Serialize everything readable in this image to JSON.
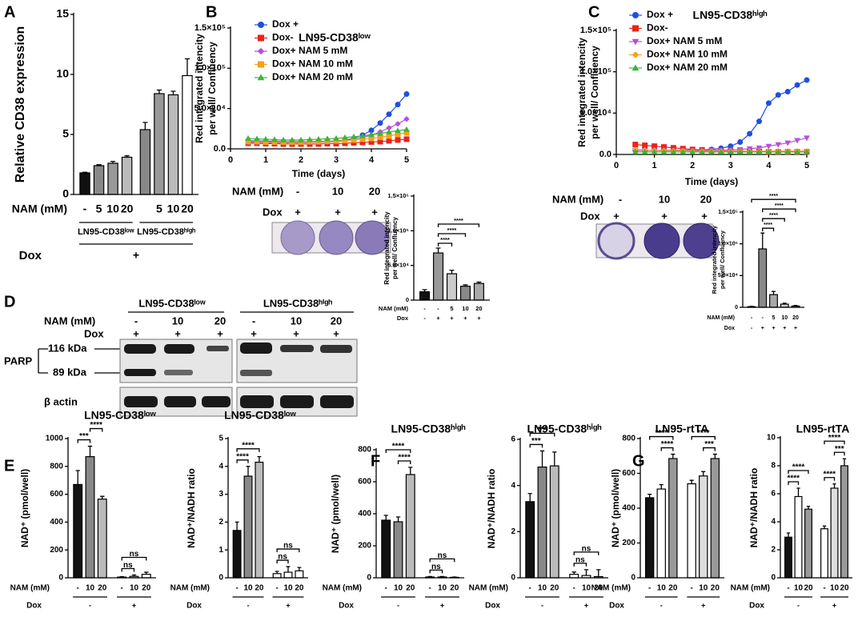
{
  "panels": [
    "A",
    "B",
    "C",
    "D",
    "E",
    "F",
    "G"
  ],
  "plate_B": {
    "nam_label": "NAM (mM)",
    "nam": [
      "-",
      "10",
      "20"
    ],
    "dox_label": "Dox",
    "dox": [
      "+",
      "+",
      "+"
    ]
  },
  "plate_C": {
    "nam_label": "NAM (mM)",
    "nam": [
      "-",
      "10",
      "20"
    ],
    "dox_label": "Dox",
    "dox": [
      "+",
      "+",
      "+"
    ]
  },
  "blot_D": {
    "nam_label": "NAM (mM)",
    "dox_label": "Dox",
    "groups": [
      {
        "title": "LN95-CD38ˡᵒʷ",
        "nam": [
          "-",
          "10",
          "20"
        ],
        "dox": [
          "+",
          "+",
          "+"
        ]
      },
      {
        "title": "LN95-CD38ʰⁱᵍʰ",
        "nam": [
          "-",
          "10",
          "20"
        ],
        "dox": [
          "+",
          "+",
          "+"
        ]
      }
    ],
    "protein": "PARP",
    "bands": [
      "116 kDa",
      "89 kDa"
    ],
    "loading": "β actin"
  },
  "chart_data": [
    {
      "type": "bar",
      "ylabel": "Relative CD38 expression",
      "ylim": [
        0,
        15
      ],
      "yticks": [
        0,
        5,
        10,
        15
      ],
      "categories": [
        "-",
        "5",
        "10",
        "20",
        null,
        "5",
        "10",
        "20"
      ],
      "values": [
        1.8,
        2.4,
        2.6,
        3.1,
        5.4,
        8.4,
        8.3,
        9.9
      ],
      "errors": [
        0.05,
        0.08,
        0.15,
        0.12,
        0.6,
        0.3,
        0.3,
        1.4
      ],
      "colors": [
        "#111111",
        "#888888",
        "#999999",
        "#bbbbbb",
        "#888888",
        "#999999",
        "#bbbbbb",
        "#ffffff"
      ],
      "row_labels": [
        "NAM (mM)",
        "Dox"
      ],
      "group_labels": [
        "LN95-CD38ˡᵒʷ",
        "LN95-CD38ʰⁱᵍʰ"
      ],
      "outer_label": "+"
    },
    {
      "type": "line",
      "title": "LN95-CD38ˡᵒʷ",
      "xlabel": "Time (days)",
      "ylabel": [
        "Red integrated intencity",
        "per well/ Confluency"
      ],
      "xlim": [
        0,
        5
      ],
      "xticks": [
        0,
        1,
        2,
        3,
        4,
        5
      ],
      "ylim": [
        0,
        150000
      ],
      "yticks": [
        {
          "value": 0,
          "label": "0.0"
        },
        {
          "value": 50000,
          "label": "5.0×10⁴"
        },
        {
          "value": 100000,
          "label": "1.0×10⁵"
        },
        {
          "value": 150000,
          "label": "1.5×10⁵"
        }
      ],
      "x": [
        0.5,
        0.75,
        1,
        1.25,
        1.5,
        1.75,
        2,
        2.25,
        2.5,
        2.75,
        3,
        3.25,
        3.5,
        3.75,
        4,
        4.25,
        4.5,
        4.75,
        5
      ],
      "series": [
        {
          "name": "Dox +",
          "color": "#1f4fe0",
          "marker": "circle",
          "values": [
            10000,
            10000,
            9500,
            9500,
            9000,
            9000,
            9000,
            9000,
            9500,
            9500,
            10000,
            11000,
            13000,
            17000,
            23000,
            32000,
            43000,
            55000,
            68000
          ]
        },
        {
          "name": "Dox-",
          "color": "#e8231a",
          "marker": "square",
          "values": [
            7000,
            7000,
            6500,
            6500,
            6000,
            6000,
            6000,
            6000,
            6000,
            6500,
            6500,
            7000,
            7500,
            8000,
            8500,
            9000,
            10000,
            11000,
            12000
          ]
        },
        {
          "name": "Dox+ NAM 5 mM",
          "color": "#b84fe0",
          "marker": "diamond",
          "values": [
            8000,
            8000,
            7500,
            7500,
            7500,
            7500,
            7500,
            8000,
            8000,
            8500,
            9000,
            10000,
            12000,
            14000,
            17000,
            21000,
            26000,
            31000,
            37000
          ]
        },
        {
          "name": "Dox+ NAM 10 mM",
          "color": "#f5a11a",
          "marker": "square",
          "values": [
            9000,
            9000,
            8500,
            8500,
            8500,
            8500,
            8500,
            9000,
            9000,
            9500,
            10000,
            10500,
            11000,
            12000,
            13000,
            14500,
            16000,
            18000,
            20000
          ]
        },
        {
          "name": "Dox+ NAM 20 mM",
          "color": "#3cb43c",
          "marker": "triangle",
          "values": [
            13000,
            12500,
            12000,
            11500,
            11000,
            11000,
            11000,
            11500,
            12000,
            12500,
            13000,
            14000,
            15000,
            16000,
            17500,
            19000,
            21000,
            22500,
            24000
          ]
        }
      ]
    },
    {
      "type": "bar",
      "ylabel": [
        "Red integrated intencity",
        "per well/ Confluency"
      ],
      "ylim": [
        0,
        150000
      ],
      "yticks": [
        0,
        {
          "value": 50000,
          "label": "5.0×10⁴"
        },
        {
          "value": 100000,
          "label": "1.0×10⁵"
        },
        {
          "value": 150000,
          "label": "1.5×10⁵"
        }
      ],
      "categories": [
        "-",
        "-",
        "5",
        "10",
        "20"
      ],
      "dox": [
        "-",
        "+",
        "+",
        "+",
        "+"
      ],
      "row_labels": [
        "NAM (mM)",
        "Dox"
      ],
      "values": [
        12000,
        68000,
        38000,
        20000,
        24000
      ],
      "errors": [
        3000,
        7000,
        5000,
        2000,
        2000
      ],
      "colors": [
        "#111111",
        "#999999",
        "#cccccc",
        "#888888",
        "#aaaaaa"
      ],
      "brackets": [
        {
          "bars": [
            1,
            2
          ],
          "label": "****"
        },
        {
          "bars": [
            1,
            3
          ],
          "label": "****"
        },
        {
          "bars": [
            1,
            4
          ],
          "label": "****"
        }
      ]
    },
    {
      "type": "line",
      "title": "LN95-CD38ʰⁱᵍʰ",
      "xlabel": "Time (days)",
      "ylabel": [
        "Red integrated intencity",
        "per well/ Confluency"
      ],
      "xlim": [
        0,
        5
      ],
      "xticks": [
        0,
        1,
        2,
        3,
        4,
        5
      ],
      "ylim": [
        0,
        150000
      ],
      "yticks": [
        {
          "value": 0,
          "label": "0.0"
        },
        {
          "value": 50000,
          "label": "5.0×10⁴"
        },
        {
          "value": 100000,
          "label": "1.0×10⁵"
        },
        {
          "value": 150000,
          "label": "1.5×10⁵"
        }
      ],
      "x": [
        0.5,
        0.75,
        1,
        1.25,
        1.5,
        1.75,
        2,
        2.25,
        2.5,
        2.75,
        3,
        3.25,
        3.5,
        3.75,
        4,
        4.25,
        4.5,
        4.75,
        5
      ],
      "series": [
        {
          "name": "Dox +",
          "color": "#1f4fe0",
          "marker": "circle",
          "values": [
            5000,
            5000,
            5000,
            5000,
            5000,
            5000,
            5000,
            5500,
            6000,
            7500,
            10000,
            15000,
            25000,
            40000,
            62000,
            72000,
            76000,
            84000,
            90000
          ]
        },
        {
          "name": "Dox-",
          "color": "#e8231a",
          "marker": "square",
          "values": [
            12000,
            11000,
            10000,
            9000,
            8000,
            7000,
            6000,
            5500,
            5000,
            4500,
            4000,
            4000,
            3500,
            3500,
            3000,
            3000,
            3000,
            3000,
            3000
          ]
        },
        {
          "name": "Dox+ NAM 5 mM",
          "color": "#b84fe0",
          "marker": "triangle-down",
          "values": [
            5000,
            5000,
            5000,
            4500,
            4500,
            4500,
            4500,
            4500,
            5000,
            5000,
            5500,
            6000,
            7000,
            8000,
            10000,
            12000,
            14000,
            17000,
            20000
          ]
        },
        {
          "name": "Dox+ NAM 10 mM",
          "color": "#f5a11a",
          "marker": "diamond",
          "values": [
            6000,
            5500,
            5000,
            5000,
            4500,
            4500,
            4000,
            4000,
            4000,
            4000,
            4000,
            4000,
            4000,
            4000,
            4000,
            4000,
            4000,
            4000,
            4000
          ]
        },
        {
          "name": "Dox+ NAM 20 mM",
          "color": "#3cb43c",
          "marker": "triangle",
          "values": [
            3000,
            3000,
            3000,
            3000,
            3000,
            3000,
            3000,
            3000,
            3000,
            3000,
            3000,
            3000,
            3000,
            3000,
            3000,
            3000,
            3000,
            3000,
            3000
          ]
        }
      ]
    },
    {
      "type": "bar",
      "ylabel": [
        "Red integrated intencity",
        "per well/ Confluency"
      ],
      "ylim": [
        0,
        150000
      ],
      "yticks": [
        0,
        {
          "value": 50000,
          "label": "5.0×10⁴"
        },
        {
          "value": 100000,
          "label": "1.0×10⁵"
        },
        {
          "value": 150000,
          "label": "1.5×10⁵"
        }
      ],
      "categories": [
        "-",
        "-",
        "5",
        "10",
        "20"
      ],
      "dox": [
        "-",
        "+",
        "+",
        "+",
        "+"
      ],
      "row_labels": [
        "NAM (mM)",
        "Dox"
      ],
      "values": [
        1000,
        92000,
        20000,
        5000,
        2000
      ],
      "errors": [
        500,
        25000,
        5000,
        1500,
        1000
      ],
      "colors": [
        "#111111",
        "#888888",
        "#aaaaaa",
        "#cccccc",
        "#999999"
      ],
      "brackets": [
        {
          "bars": [
            1,
            2
          ],
          "label": "****"
        },
        {
          "bars": [
            1,
            3
          ],
          "label": "****"
        },
        {
          "bars": [
            1,
            4
          ],
          "label": "****"
        },
        {
          "bars": [
            0,
            4
          ],
          "label": "****"
        }
      ]
    },
    {
      "type": "bar",
      "title": "LN95-CD38ˡᵒʷ",
      "ylabel": "NAD⁺ (pmol/well)",
      "ylim": [
        0,
        1000
      ],
      "yticks": [
        0,
        200,
        400,
        600,
        800,
        1000
      ],
      "categories": [
        "-",
        "10",
        "20",
        "-",
        "10",
        "20"
      ],
      "row_labels": [
        "NAM (mM)",
        "Dox"
      ],
      "group_labels": [
        "-",
        "+"
      ],
      "values": [
        670,
        870,
        565,
        5,
        10,
        25
      ],
      "errors": [
        100,
        75,
        20,
        3,
        10,
        15
      ],
      "colors": [
        "#111111",
        "#888888",
        "#bbbbbb",
        "#ffffff",
        "#ffffff",
        "#ffffff"
      ],
      "brackets": [
        {
          "bars": [
            0,
            1
          ],
          "label": "***"
        },
        {
          "bars": [
            1,
            2
          ],
          "label": "****"
        },
        {
          "bars": [
            3,
            4
          ],
          "label": "ns"
        },
        {
          "bars": [
            3,
            5
          ],
          "label": "ns"
        }
      ]
    },
    {
      "type": "bar",
      "title": "LN95-CD38ˡᵒʷ",
      "ylabel": "NAD⁺/NADH ratio",
      "ylim": [
        0,
        5
      ],
      "yticks": [
        0,
        1,
        2,
        3,
        4,
        5
      ],
      "categories": [
        "-",
        "10",
        "20",
        "-",
        "10",
        "20"
      ],
      "row_labels": [
        "NAM (mM)",
        "Dox"
      ],
      "group_labels": [
        "-",
        "+"
      ],
      "values": [
        1.7,
        3.65,
        4.15,
        0.15,
        0.2,
        0.25
      ],
      "errors": [
        0.3,
        0.35,
        0.2,
        0.08,
        0.2,
        0.12
      ],
      "colors": [
        "#111111",
        "#888888",
        "#bbbbbb",
        "#ffffff",
        "#ffffff",
        "#ffffff"
      ],
      "brackets": [
        {
          "bars": [
            0,
            1
          ],
          "label": "****"
        },
        {
          "bars": [
            0,
            2
          ],
          "label": "****"
        },
        {
          "bars": [
            3,
            4
          ],
          "label": "ns"
        },
        {
          "bars": [
            3,
            5
          ],
          "label": "ns"
        }
      ]
    },
    {
      "type": "bar",
      "title": "LN95-CD38ʰⁱᵍʰ",
      "ylabel": "NAD⁺ (pmol/well)",
      "ylim": [
        0,
        800
      ],
      "yticks": [
        0,
        200,
        400,
        600,
        800
      ],
      "categories": [
        "-",
        "10",
        "20",
        "-",
        "10",
        "20"
      ],
      "row_labels": [
        "NAM (mM)",
        "Dox"
      ],
      "group_labels": [
        "-",
        "+"
      ],
      "values": [
        360,
        350,
        645,
        5,
        5,
        3
      ],
      "errors": [
        30,
        30,
        45,
        3,
        3,
        2
      ],
      "colors": [
        "#111111",
        "#888888",
        "#bbbbbb",
        "#ffffff",
        "#ffffff",
        "#ffffff"
      ],
      "brackets": [
        {
          "bars": [
            1,
            2
          ],
          "label": "****"
        },
        {
          "bars": [
            0,
            2
          ],
          "label": "****"
        },
        {
          "bars": [
            3,
            4
          ],
          "label": "ns"
        },
        {
          "bars": [
            3,
            5
          ],
          "label": "ns"
        }
      ]
    },
    {
      "type": "bar",
      "title": "LN95-CD38ʰⁱᵍʰ",
      "ylabel": "NAD⁺/NADH ratio",
      "ylim": [
        0,
        6
      ],
      "yticks": [
        0,
        2,
        4,
        6
      ],
      "categories": [
        "-",
        "10",
        "20",
        "-",
        "10",
        "20"
      ],
      "row_labels": [
        "NAM (mM)",
        "Dox"
      ],
      "group_labels": [
        "-",
        "+"
      ],
      "values": [
        3.3,
        4.8,
        4.85,
        0.15,
        0.1,
        0.05
      ],
      "errors": [
        0.35,
        0.7,
        0.6,
        0.1,
        0.25,
        0.3
      ],
      "colors": [
        "#111111",
        "#888888",
        "#bbbbbb",
        "#ffffff",
        "#ffffff",
        "#ffffff"
      ],
      "brackets": [
        {
          "bars": [
            0,
            1
          ],
          "label": "***"
        },
        {
          "bars": [
            0,
            2
          ],
          "label": "***"
        },
        {
          "bars": [
            3,
            4
          ],
          "label": "ns"
        },
        {
          "bars": [
            3,
            5
          ],
          "label": "ns"
        }
      ]
    },
    {
      "type": "bar",
      "title": "LN95-rtTA",
      "ylabel": "NAD⁺ (pmol/well)",
      "ylim": [
        0,
        800
      ],
      "yticks": [
        0,
        200,
        400,
        600,
        800
      ],
      "categories": [
        "-",
        "10",
        "20",
        "-",
        "10",
        "20"
      ],
      "row_labels": [
        "NAM (mM)",
        "Dox"
      ],
      "group_labels": [
        "-",
        "+"
      ],
      "values": [
        460,
        510,
        685,
        540,
        585,
        685
      ],
      "errors": [
        20,
        25,
        25,
        20,
        25,
        25
      ],
      "colors": [
        "#111111",
        "#ffffff",
        "#999999",
        "#ffffff",
        "#dddddd",
        "#999999"
      ],
      "brackets": [
        {
          "bars": [
            1,
            2
          ],
          "label": "****"
        },
        {
          "bars": [
            0,
            2
          ],
          "label": "****"
        },
        {
          "bars": [
            4,
            5
          ],
          "label": "***"
        },
        {
          "bars": [
            3,
            5
          ],
          "label": "****"
        }
      ]
    },
    {
      "type": "bar",
      "title": "LN95-rtTA",
      "ylabel": "NAD⁺/NADH ratio",
      "ylim": [
        0,
        10
      ],
      "yticks": [
        0,
        2,
        4,
        6,
        8,
        10
      ],
      "categories": [
        "-",
        "10",
        "20",
        "-",
        "10",
        "20"
      ],
      "row_labels": [
        "NAM (mM)",
        "Dox"
      ],
      "group_labels": [
        "-",
        "+"
      ],
      "values": [
        2.9,
        5.8,
        4.9,
        3.5,
        6.4,
        8.0
      ],
      "errors": [
        0.3,
        0.6,
        0.2,
        0.2,
        0.3,
        0.5
      ],
      "colors": [
        "#111111",
        "#ffffff",
        "#999999",
        "#ffffff",
        "#dddddd",
        "#999999"
      ],
      "brackets": [
        {
          "bars": [
            0,
            1
          ],
          "label": "****"
        },
        {
          "bars": [
            0,
            2
          ],
          "label": "****"
        },
        {
          "bars": [
            3,
            4
          ],
          "label": "****"
        },
        {
          "bars": [
            4,
            5
          ],
          "label": "***"
        },
        {
          "bars": [
            3,
            5
          ],
          "label": "****"
        }
      ]
    }
  ]
}
